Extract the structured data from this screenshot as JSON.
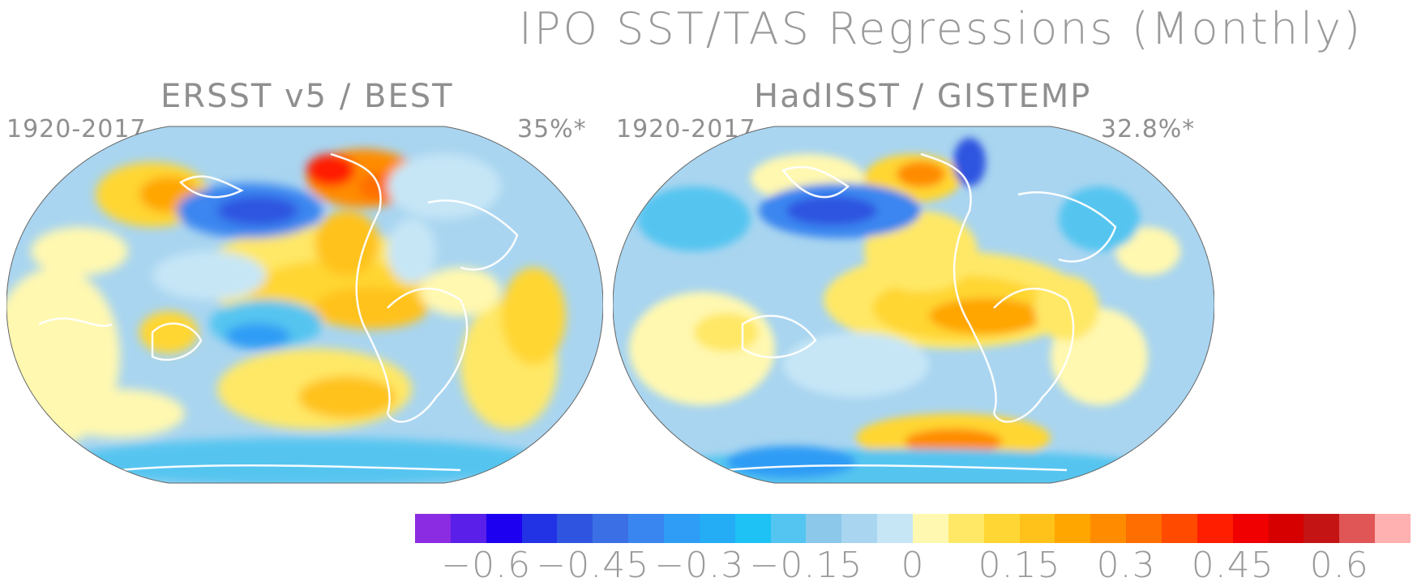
{
  "figure": {
    "title": "IPO SST/TAS Regressions (Monthly)"
  },
  "panels": [
    {
      "title": "ERSST v5 / BEST",
      "period": "1920-2017",
      "variance": "35%*"
    },
    {
      "title": "HadISST / GISTEMP",
      "period": "1920-2017",
      "variance": "32.8%*"
    }
  ],
  "colorbar": {
    "colors": [
      "#8B2BE2",
      "#5A1FE8",
      "#1E00F0",
      "#2233E6",
      "#2F55E0",
      "#3B6FE6",
      "#3A86F0",
      "#2F9CF5",
      "#24ACF5",
      "#1EC2F5",
      "#54C5F0",
      "#8CC8EA",
      "#A9D5F0",
      "#C6E6F6",
      "#FFF8B0",
      "#FFE866",
      "#FFD633",
      "#FFC21A",
      "#FFA600",
      "#FF8C00",
      "#FF6E00",
      "#FF4A00",
      "#FF1E00",
      "#F00000",
      "#D60000",
      "#C41414",
      "#E05555",
      "#FFB0B0"
    ],
    "labels": [
      "−0.6",
      "−0.45",
      "−0.3",
      "−0.15",
      "0",
      "0.15",
      "0.3",
      "0.45",
      "0.6"
    ]
  }
}
